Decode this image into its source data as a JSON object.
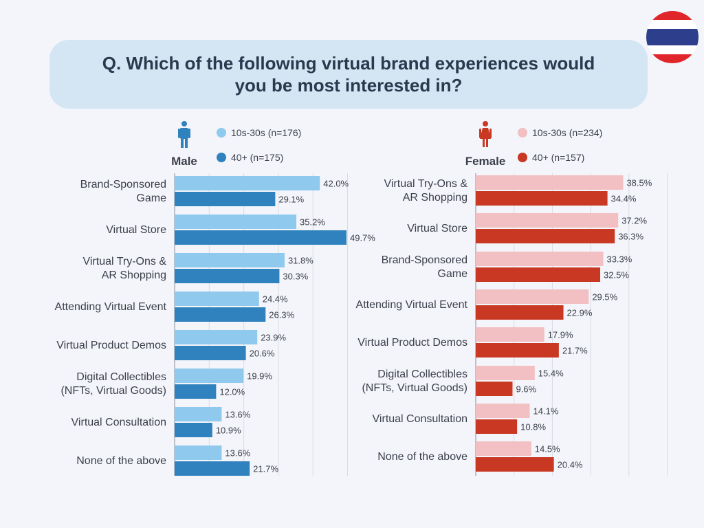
{
  "title": "Q. Which of the following virtual brand experiences would you be most interested in?",
  "flag": {
    "colors": [
      "#e0262b",
      "#ffffff",
      "#2c3e8c",
      "#ffffff",
      "#e0262b"
    ]
  },
  "chart_data": [
    {
      "type": "bar",
      "panel": "Male",
      "orientation": "horizontal",
      "xlim": [
        0,
        50
      ],
      "grid": true,
      "categories": [
        "Brand-Sponsored Game",
        "Virtual Store",
        "Virtual Try-Ons & AR Shopping",
        "Attending Virtual Event",
        "Virtual Product Demos",
        "Digital Collectibles (NFTs, Virtual Goods)",
        "Virtual Consultation",
        "None of the above"
      ],
      "category_lines": [
        [
          "Brand-Sponsored",
          "Game"
        ],
        [
          "Virtual Store"
        ],
        [
          "Virtual Try-Ons &",
          "AR Shopping"
        ],
        [
          "Attending Virtual Event"
        ],
        [
          "Virtual Product Demos"
        ],
        [
          "Digital Collectibles",
          "(NFTs, Virtual Goods)"
        ],
        [
          "Virtual Consultation"
        ],
        [
          "None of the above"
        ]
      ],
      "series": [
        {
          "name": "10s-30s (n=176)",
          "color": "#8fc9ee",
          "values": [
            42.0,
            35.2,
            31.8,
            24.4,
            23.9,
            19.9,
            13.6,
            13.6
          ],
          "labels": [
            "42.0%",
            "35.2%",
            "31.8%",
            "24.4%",
            "23.9%",
            "19.9%",
            "13.6%",
            "13.6%"
          ]
        },
        {
          "name": "40+ (n=175)",
          "color": "#2f82bd",
          "values": [
            29.1,
            49.7,
            30.3,
            26.3,
            20.6,
            12.0,
            10.9,
            21.7
          ],
          "labels": [
            "29.1%",
            "49.7%",
            "30.3%",
            "26.3%",
            "20.6%",
            "12.0%",
            "10.9%",
            "21.7%"
          ]
        }
      ],
      "icon": "male-person-icon",
      "icon_color": "#2f82bd"
    },
    {
      "type": "bar",
      "panel": "Female",
      "orientation": "horizontal",
      "xlim": [
        0,
        50
      ],
      "grid": true,
      "categories": [
        "Virtual Try-Ons & AR Shopping",
        "Virtual Store",
        "Brand-Sponsored Game",
        "Attending Virtual Event",
        "Virtual Product Demos",
        "Digital Collectibles (NFTs, Virtual Goods)",
        "Virtual Consultation",
        "None of the above"
      ],
      "category_lines": [
        [
          "Virtual Try-Ons &",
          "AR Shopping"
        ],
        [
          "Virtual Store"
        ],
        [
          "Brand-Sponsored",
          "Game"
        ],
        [
          "Attending Virtual Event"
        ],
        [
          "Virtual Product Demos"
        ],
        [
          "Digital Collectibles",
          "(NFTs, Virtual Goods)"
        ],
        [
          "Virtual Consultation"
        ],
        [
          "None of the above"
        ]
      ],
      "series": [
        {
          "name": "10s-30s (n=234)",
          "color": "#f2bfc2",
          "values": [
            38.5,
            37.2,
            33.3,
            29.5,
            17.9,
            15.4,
            14.1,
            14.5
          ],
          "labels": [
            "38.5%",
            "37.2%",
            "33.3%",
            "29.5%",
            "17.9%",
            "15.4%",
            "14.1%",
            "14.5%"
          ]
        },
        {
          "name": "40+ (n=157)",
          "color": "#c93823",
          "values": [
            34.4,
            36.3,
            32.5,
            22.9,
            21.7,
            9.6,
            10.8,
            20.4
          ],
          "labels": [
            "34.4%",
            "36.3%",
            "32.5%",
            "22.9%",
            "21.7%",
            "9.6%",
            "10.8%",
            "20.4%"
          ]
        }
      ],
      "icon": "female-person-icon",
      "icon_color": "#c93823"
    }
  ]
}
